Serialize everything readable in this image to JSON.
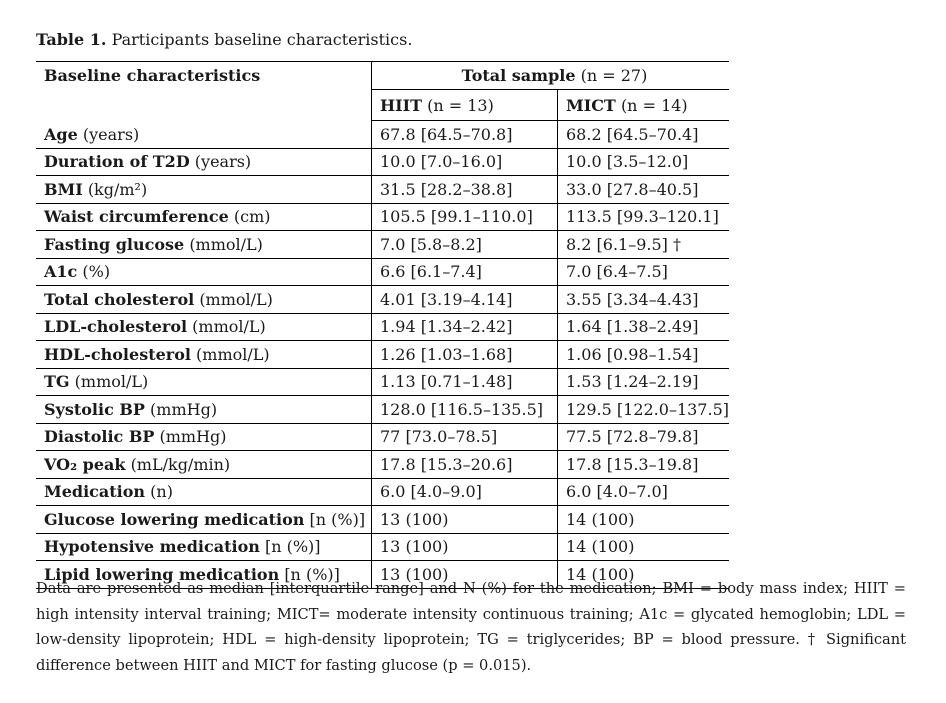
{
  "caption": {
    "label": "Table 1.",
    "text": "Participants baseline characteristics."
  },
  "header": {
    "col1": "Baseline characteristics",
    "total_label": "Total sample",
    "total_n": "(n = 27)",
    "hiit_label": "HIIT",
    "hiit_n": "(n = 13)",
    "mict_label": "MICT",
    "mict_n": "(n = 14)"
  },
  "rows": [
    {
      "name": "Age",
      "unit": "(years)",
      "hiit": "67.8 [64.5–70.8]",
      "mict": "68.2 [64.5–70.4]"
    },
    {
      "name": "Duration of T2D",
      "unit": "(years)",
      "hiit": "10.0 [7.0–16.0]",
      "mict": "10.0 [3.5–12.0]"
    },
    {
      "name": "BMI",
      "unit": "(kg/m²)",
      "hiit": "31.5 [28.2–38.8]",
      "mict": "33.0 [27.8–40.5]"
    },
    {
      "name": "Waist circumference",
      "unit": "(cm)",
      "hiit": "105.5 [99.1–110.0]",
      "mict": "113.5 [99.3–120.1]"
    },
    {
      "name": "Fasting glucose",
      "unit": "(mmol/L)",
      "hiit": "7.0 [5.8–8.2]",
      "mict": "8.2 [6.1–9.5] †"
    },
    {
      "name": "A1c",
      "unit": "(%)",
      "hiit": "6.6 [6.1–7.4]",
      "mict": "7.0 [6.4–7.5]"
    },
    {
      "name": "Total cholesterol",
      "unit": "(mmol/L)",
      "hiit": "4.01 [3.19–4.14]",
      "mict": "3.55 [3.34–4.43]"
    },
    {
      "name": "LDL-cholesterol",
      "unit": "(mmol/L)",
      "hiit": "1.94 [1.34–2.42]",
      "mict": "1.64 [1.38–2.49]"
    },
    {
      "name": "HDL-cholesterol",
      "unit": "(mmol/L)",
      "hiit": "1.26 [1.03–1.68]",
      "mict": "1.06 [0.98–1.54]"
    },
    {
      "name": "TG",
      "unit": "(mmol/L)",
      "hiit": "1.13 [0.71–1.48]",
      "mict": "1.53 [1.24–2.19]"
    },
    {
      "name": "Systolic BP",
      "unit": "(mmHg)",
      "hiit": "128.0 [116.5–135.5]",
      "mict": "129.5 [122.0–137.5]"
    },
    {
      "name": "Diastolic BP",
      "unit": "(mmHg)",
      "hiit": "77 [73.0–78.5]",
      "mict": "77.5 [72.8–79.8]"
    },
    {
      "name": "VO₂ peak",
      "unit": "(mL/kg/min)",
      "hiit": "17.8 [15.3–20.6]",
      "mict": "17.8 [15.3–19.8]"
    },
    {
      "name": "Medication",
      "unit": "(n)",
      "hiit": "6.0 [4.0–9.0]",
      "mict": "6.0 [4.0–7.0]"
    },
    {
      "name": "Glucose lowering medication",
      "unit": "[n (%)]",
      "hiit": "13 (100)",
      "mict": "14 (100)"
    },
    {
      "name": "Hypotensive medication",
      "unit": "[n (%)]",
      "hiit": "13 (100)",
      "mict": "14 (100)"
    },
    {
      "name": "Lipid lowering medication",
      "unit": "[n (%)]",
      "hiit": "13 (100)",
      "mict": "14 (100)"
    }
  ],
  "note": "Data are presented as median [interquartile range] and N (%) for the medication; BMI = body mass index; HIIT = high intensity interval training; MICT= moderate intensity continuous training; A1c = glycated hemoglobin; LDL = low-density lipoprotein; HDL = high-density lipoprotein; TG = triglycerides; BP = blood pressure. † Significant difference between HIIT and MICT for fasting glucose (p = 0.015)."
}
